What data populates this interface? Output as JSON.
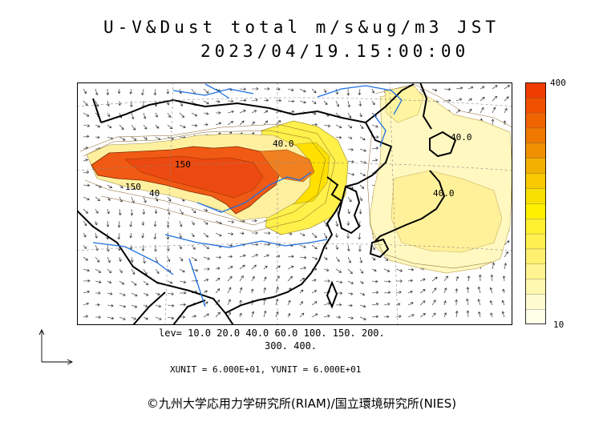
{
  "title": "U-V&Dust total m/s&ug/m3 JST",
  "datetime": "2023/04/19.15:00:00",
  "legend": {
    "max_label": "400",
    "min_label": "10",
    "colors": [
      "#ffffe8",
      "#fffbd0",
      "#fff8b0",
      "#fff490",
      "#fff070",
      "#fff050",
      "#fff030",
      "#fff000",
      "#f8e000",
      "#f8c800",
      "#f4b000",
      "#f09000",
      "#f07800",
      "#f06400",
      "#f05000",
      "#f03c00"
    ]
  },
  "levels_line1": "lev= 10.0 20.0 40.0 60.0 100. 150. 200.",
  "levels_line2": "300. 400.",
  "units_line": "XUNIT = 6.000E+01, YUNIT = 6.000E+01",
  "contour_labels": [
    "40.0",
    "150",
    "150",
    "40",
    "40.0",
    "40.0"
  ],
  "copyright": "©九州大学応用力学研究所(RIAM)/国立環境研究所(NIES)"
}
